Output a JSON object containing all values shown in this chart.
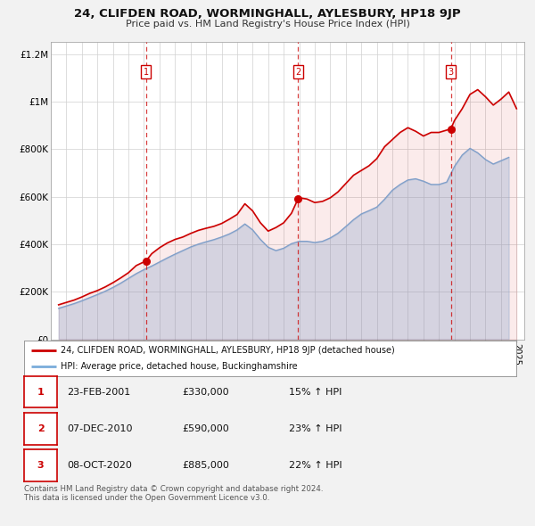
{
  "title": "24, CLIFDEN ROAD, WORMINGHALL, AYLESBURY, HP18 9JP",
  "subtitle": "Price paid vs. HM Land Registry's House Price Index (HPI)",
  "background_color": "#f2f2f2",
  "plot_background": "#ffffff",
  "ylim": [
    0,
    1250000
  ],
  "xlim_start": 1995.0,
  "xlim_end": 2025.5,
  "yticks": [
    0,
    200000,
    400000,
    600000,
    800000,
    1000000,
    1200000
  ],
  "ytick_labels": [
    "£0",
    "£200K",
    "£400K",
    "£600K",
    "£800K",
    "£1M",
    "£1.2M"
  ],
  "red_color": "#cc0000",
  "blue_color": "#7aaddb",
  "legend_label_red": "24, CLIFDEN ROAD, WORMINGHALL, AYLESBURY, HP18 9JP (detached house)",
  "legend_label_blue": "HPI: Average price, detached house, Buckinghamshire",
  "sale_dates": [
    2001.14,
    2010.92,
    2020.77
  ],
  "sale_prices": [
    330000,
    590000,
    885000
  ],
  "sale_labels": [
    "1",
    "2",
    "3"
  ],
  "vline_dates": [
    2001.14,
    2010.92,
    2020.77
  ],
  "table_data": [
    [
      "1",
      "23-FEB-2001",
      "£330,000",
      "15% ↑ HPI"
    ],
    [
      "2",
      "07-DEC-2010",
      "£590,000",
      "23% ↑ HPI"
    ],
    [
      "3",
      "08-OCT-2020",
      "£885,000",
      "22% ↑ HPI"
    ]
  ],
  "footer": "Contains HM Land Registry data © Crown copyright and database right 2024.\nThis data is licensed under the Open Government Licence v3.0.",
  "red_line_data_x": [
    1995.5,
    1996.0,
    1996.5,
    1997.0,
    1997.5,
    1998.0,
    1998.5,
    1999.0,
    1999.5,
    2000.0,
    2000.5,
    2001.14,
    2001.5,
    2002.0,
    2002.5,
    2003.0,
    2003.5,
    2004.0,
    2004.5,
    2005.0,
    2005.5,
    2006.0,
    2006.5,
    2007.0,
    2007.5,
    2008.0,
    2008.5,
    2009.0,
    2009.5,
    2010.0,
    2010.5,
    2010.92,
    2011.0,
    2011.5,
    2012.0,
    2012.5,
    2013.0,
    2013.5,
    2014.0,
    2014.5,
    2015.0,
    2015.5,
    2016.0,
    2016.5,
    2017.0,
    2017.5,
    2018.0,
    2018.5,
    2019.0,
    2019.5,
    2020.0,
    2020.77,
    2021.0,
    2021.5,
    2022.0,
    2022.5,
    2023.0,
    2023.5,
    2024.0,
    2024.5,
    2025.0
  ],
  "red_line_data_y": [
    145000,
    155000,
    165000,
    178000,
    193000,
    205000,
    220000,
    238000,
    258000,
    280000,
    310000,
    330000,
    360000,
    385000,
    405000,
    420000,
    430000,
    445000,
    458000,
    467000,
    475000,
    487000,
    505000,
    525000,
    570000,
    540000,
    490000,
    455000,
    470000,
    490000,
    530000,
    590000,
    595000,
    590000,
    575000,
    580000,
    595000,
    620000,
    655000,
    690000,
    710000,
    730000,
    760000,
    810000,
    840000,
    870000,
    890000,
    875000,
    855000,
    870000,
    870000,
    885000,
    920000,
    970000,
    1030000,
    1050000,
    1020000,
    985000,
    1010000,
    1040000,
    970000
  ],
  "blue_line_data_x": [
    1995.5,
    1996.0,
    1996.5,
    1997.0,
    1997.5,
    1998.0,
    1998.5,
    1999.0,
    1999.5,
    2000.0,
    2000.5,
    2001.0,
    2001.5,
    2002.0,
    2002.5,
    2003.0,
    2003.5,
    2004.0,
    2004.5,
    2005.0,
    2005.5,
    2006.0,
    2006.5,
    2007.0,
    2007.5,
    2008.0,
    2008.5,
    2009.0,
    2009.5,
    2010.0,
    2010.5,
    2011.0,
    2011.5,
    2012.0,
    2012.5,
    2013.0,
    2013.5,
    2014.0,
    2014.5,
    2015.0,
    2015.5,
    2016.0,
    2016.5,
    2017.0,
    2017.5,
    2018.0,
    2018.5,
    2019.0,
    2019.5,
    2020.0,
    2020.5,
    2021.0,
    2021.5,
    2022.0,
    2022.5,
    2023.0,
    2023.5,
    2024.0,
    2024.5
  ],
  "blue_line_data_y": [
    130000,
    140000,
    150000,
    162000,
    175000,
    188000,
    202000,
    218000,
    236000,
    256000,
    276000,
    293000,
    308000,
    325000,
    342000,
    358000,
    373000,
    388000,
    400000,
    410000,
    419000,
    430000,
    443000,
    460000,
    485000,
    460000,
    420000,
    387000,
    373000,
    383000,
    402000,
    412000,
    412000,
    407000,
    412000,
    426000,
    446000,
    474000,
    503000,
    527000,
    541000,
    556000,
    589000,
    627000,
    651000,
    670000,
    675000,
    665000,
    651000,
    651000,
    661000,
    727000,
    775000,
    803000,
    784000,
    756000,
    737000,
    751000,
    765000
  ]
}
